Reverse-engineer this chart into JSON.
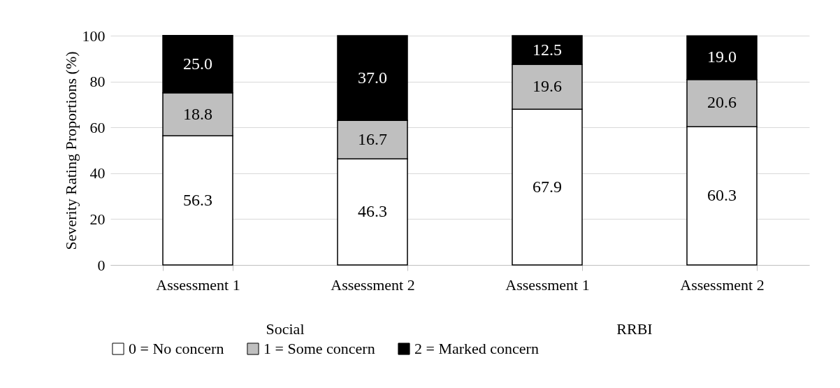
{
  "chart_data": {
    "type": "bar",
    "stacked": true,
    "ylabel": "Severity Rating Proportions (%)",
    "categories": [
      "Assessment 1",
      "Assessment 2",
      "Assessment 1",
      "Assessment 2"
    ],
    "annotations": [
      "Social",
      "RRBI"
    ],
    "series": [
      {
        "name": "0 = No concern",
        "color": "#ffffff",
        "values": [
          56.3,
          46.3,
          67.9,
          60.3
        ],
        "value_labels": [
          "56.3",
          "46.3",
          "67.9",
          "60.3"
        ]
      },
      {
        "name": "1 = Some concern",
        "color": "#bfbfbf",
        "values": [
          18.8,
          16.7,
          19.6,
          20.6
        ],
        "value_labels": [
          "18.8",
          "16.7",
          "19.6",
          "20.6"
        ]
      },
      {
        "name": "2 = Marked concern",
        "color": "#000000",
        "values": [
          25.0,
          37.0,
          12.5,
          19.0
        ],
        "value_labels": [
          "25.0",
          "37.0",
          "12.5",
          "19.0"
        ]
      }
    ],
    "ylim": [
      0,
      100
    ],
    "yticks": [
      0,
      20,
      40,
      60,
      80,
      100
    ],
    "grid": "y",
    "legend": "bottom"
  }
}
